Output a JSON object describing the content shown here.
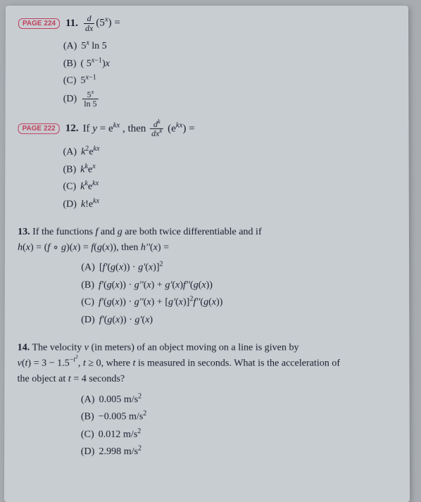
{
  "q11": {
    "badge": "PAGE 224",
    "num": "11.",
    "stem_html": "<span class='frac'><span class='num'><i>d</i></span><span class='den'><i>dx</i></span></span>(5<sup><i>x</i></sup>) =",
    "choices": [
      {
        "label": "(A)",
        "html": "5<sup><i>x</i></sup> ln 5"
      },
      {
        "label": "(B)",
        "html": "( 5<sup><i>x</i>&minus;1</sup>)<i>x</i>"
      },
      {
        "label": "(C)",
        "html": "5<sup><i>x</i>&minus;1</sup>"
      },
      {
        "label": "(D)",
        "html": "<span class='frac'><span class='num'>5<sup><i>x</i></sup></span><span class='den'>ln 5</span></span>"
      }
    ]
  },
  "q12": {
    "badge": "PAGE 222",
    "num": "12.",
    "stem_html": "If <i>y</i> = e<sup><i>kx</i></sup> , then <span class='frac'><span class='num'><i>d</i><sup><i>k</i></sup></span><span class='den'><i>dx</i><sup><i>k</i></sup></span></span> (e<sup><i>kx</i></sup>) =",
    "choices": [
      {
        "label": "(A)",
        "html": "<i>k</i><sup>2</sup>e<sup><i>kx</i></sup>"
      },
      {
        "label": "(B)",
        "html": "<i>k</i><sup><i>k</i></sup>e<sup><i>x</i></sup>"
      },
      {
        "label": "(C)",
        "html": "<i>k</i><sup><i>k</i></sup>e<sup><i>kx</i></sup>"
      },
      {
        "label": "(D)",
        "html": "<i>k</i>!e<sup><i>kx</i></sup>"
      }
    ]
  },
  "q13": {
    "num": "13.",
    "line1_html": "If the functions <i>f</i> and <i>g</i> are both twice differentiable and if",
    "line2_html": "<i>h</i>(<i>x</i>) = (<i>f</i> &#8728; <i>g</i>)(<i>x</i>) = <i>f</i>(<i>g</i>(<i>x</i>)), then <i>h''</i>(<i>x</i>) =",
    "choices": [
      {
        "label": "(A)",
        "html": "[<i>f'</i>(<i>g</i>(<i>x</i>)) &middot; <i>g'</i>(<i>x</i>)]<sup>2</sup>"
      },
      {
        "label": "(B)",
        "html": "<i>f'</i>(<i>g</i>(<i>x</i>)) &middot; <i>g''</i>(<i>x</i>) + <i>g'</i>(<i>x</i>)<i>f''</i>(<i>g</i>(<i>x</i>))"
      },
      {
        "label": "(C)",
        "html": "<i>f'</i>(<i>g</i>(<i>x</i>)) &middot; <i>g''</i>(<i>x</i>) + [<i>g'</i>(<i>x</i>)]<sup>2</sup><i>f''</i>(<i>g</i>(<i>x</i>))"
      },
      {
        "label": "(D)",
        "html": "<i>f'</i>(<i>g</i>(<i>x</i>)) &middot; <i>g'</i>(<i>x</i>)"
      }
    ]
  },
  "q14": {
    "num": "14.",
    "line1_html": "The velocity <i>v</i> (in meters) of an object moving on a line is given by",
    "line2_html": "<i>v</i>(<i>t</i>) = 3 &minus; 1.5<sup>&minus;<i>t</i><sup>2</sup></sup>, <i>t</i> &ge; 0, where <i>t</i> is measured in seconds. What is the acceleration of",
    "line3_html": "the object at <i>t</i> = 4 seconds?",
    "choices": [
      {
        "label": "(A)",
        "html": "0.005 m/s<sup>2</sup>"
      },
      {
        "label": "(B)",
        "html": "&minus;0.005 m/s<sup>2</sup>"
      },
      {
        "label": "(C)",
        "html": "0.012 m/s<sup>2</sup>"
      },
      {
        "label": "(D)",
        "html": "2.998 m/s<sup>2</sup>"
      }
    ]
  }
}
